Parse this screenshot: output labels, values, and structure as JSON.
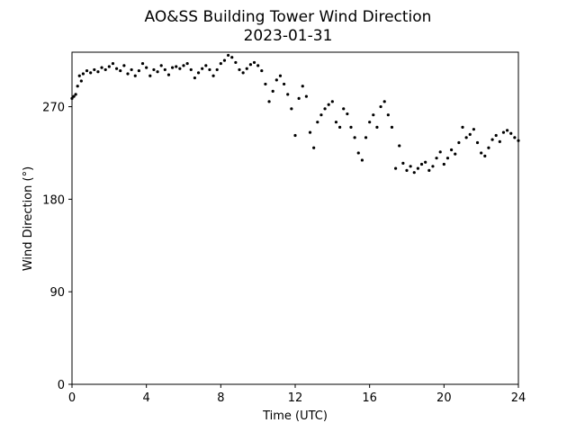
{
  "chart_data": {
    "type": "scatter",
    "title": "AO&SS Building Tower Wind Direction",
    "subtitle": "2023-01-31",
    "xlabel": "Time (UTC)",
    "ylabel": "Wind Direction (°)",
    "xlim": [
      0,
      24
    ],
    "ylim": [
      0,
      323
    ],
    "xticks": [
      0,
      4,
      8,
      12,
      16,
      20,
      24
    ],
    "yticks": [
      0,
      90,
      180,
      270
    ],
    "grid": false,
    "legend": "none",
    "marker_color": "#000000",
    "series": [
      {
        "points": [
          [
            0.0,
            278
          ],
          [
            0.1,
            280
          ],
          [
            0.2,
            282
          ],
          [
            0.3,
            290
          ],
          [
            0.4,
            300
          ],
          [
            0.5,
            295
          ],
          [
            0.6,
            302
          ],
          [
            0.8,
            305
          ],
          [
            1.0,
            303
          ],
          [
            1.2,
            306
          ],
          [
            1.4,
            304
          ],
          [
            1.6,
            308
          ],
          [
            1.8,
            306
          ],
          [
            2.0,
            309
          ],
          [
            2.2,
            312
          ],
          [
            2.4,
            307
          ],
          [
            2.6,
            305
          ],
          [
            2.8,
            310
          ],
          [
            3.0,
            302
          ],
          [
            3.2,
            306
          ],
          [
            3.4,
            300
          ],
          [
            3.6,
            305
          ],
          [
            3.8,
            312
          ],
          [
            4.0,
            308
          ],
          [
            4.2,
            300
          ],
          [
            4.4,
            306
          ],
          [
            4.6,
            304
          ],
          [
            4.8,
            310
          ],
          [
            5.0,
            306
          ],
          [
            5.2,
            301
          ],
          [
            5.4,
            308
          ],
          [
            5.6,
            309
          ],
          [
            5.8,
            307
          ],
          [
            6.0,
            310
          ],
          [
            6.2,
            312
          ],
          [
            6.4,
            306
          ],
          [
            6.6,
            298
          ],
          [
            6.8,
            303
          ],
          [
            7.0,
            307
          ],
          [
            7.2,
            310
          ],
          [
            7.4,
            306
          ],
          [
            7.6,
            300
          ],
          [
            7.8,
            306
          ],
          [
            8.0,
            312
          ],
          [
            8.2,
            315
          ],
          [
            8.4,
            320
          ],
          [
            8.6,
            318
          ],
          [
            8.8,
            313
          ],
          [
            9.0,
            306
          ],
          [
            9.2,
            303
          ],
          [
            9.4,
            307
          ],
          [
            9.6,
            311
          ],
          [
            9.8,
            313
          ],
          [
            10.0,
            310
          ],
          [
            10.2,
            305
          ],
          [
            10.4,
            292
          ],
          [
            10.6,
            275
          ],
          [
            10.8,
            285
          ],
          [
            11.0,
            296
          ],
          [
            11.2,
            300
          ],
          [
            11.4,
            292
          ],
          [
            11.6,
            282
          ],
          [
            11.8,
            268
          ],
          [
            12.0,
            242
          ],
          [
            12.2,
            278
          ],
          [
            12.4,
            290
          ],
          [
            12.6,
            280
          ],
          [
            12.8,
            245
          ],
          [
            13.0,
            230
          ],
          [
            13.2,
            255
          ],
          [
            13.4,
            262
          ],
          [
            13.6,
            268
          ],
          [
            13.8,
            272
          ],
          [
            14.0,
            275
          ],
          [
            14.2,
            255
          ],
          [
            14.4,
            250
          ],
          [
            14.6,
            268
          ],
          [
            14.8,
            263
          ],
          [
            15.0,
            250
          ],
          [
            15.2,
            240
          ],
          [
            15.4,
            225
          ],
          [
            15.6,
            218
          ],
          [
            15.8,
            240
          ],
          [
            16.0,
            255
          ],
          [
            16.2,
            262
          ],
          [
            16.4,
            250
          ],
          [
            16.6,
            270
          ],
          [
            16.8,
            275
          ],
          [
            17.0,
            262
          ],
          [
            17.2,
            250
          ],
          [
            17.4,
            210
          ],
          [
            17.6,
            232
          ],
          [
            17.8,
            215
          ],
          [
            18.0,
            208
          ],
          [
            18.2,
            212
          ],
          [
            18.4,
            206
          ],
          [
            18.6,
            210
          ],
          [
            18.8,
            214
          ],
          [
            19.0,
            216
          ],
          [
            19.2,
            208
          ],
          [
            19.4,
            212
          ],
          [
            19.6,
            220
          ],
          [
            19.8,
            226
          ],
          [
            20.0,
            214
          ],
          [
            20.2,
            220
          ],
          [
            20.4,
            228
          ],
          [
            20.6,
            224
          ],
          [
            20.8,
            235
          ],
          [
            21.0,
            250
          ],
          [
            21.2,
            240
          ],
          [
            21.4,
            243
          ],
          [
            21.6,
            248
          ],
          [
            21.8,
            235
          ],
          [
            22.0,
            225
          ],
          [
            22.2,
            222
          ],
          [
            22.4,
            230
          ],
          [
            22.6,
            238
          ],
          [
            22.8,
            242
          ],
          [
            23.0,
            236
          ],
          [
            23.2,
            245
          ],
          [
            23.4,
            247
          ],
          [
            23.6,
            244
          ],
          [
            23.8,
            240
          ],
          [
            24.0,
            237
          ]
        ]
      }
    ]
  }
}
